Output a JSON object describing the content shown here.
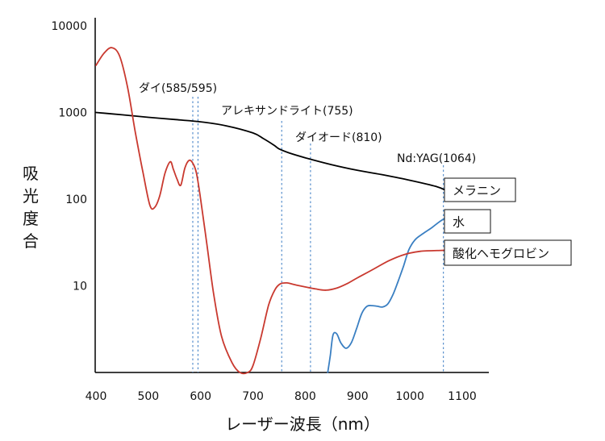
{
  "chart_data": {
    "type": "line",
    "title": "",
    "xlabel": "レーザー波長（nm）",
    "ylabel": "吸光度合",
    "x_ticks": [
      400,
      500,
      600,
      700,
      800,
      900,
      1000,
      1100
    ],
    "xlim": [
      400,
      1150
    ],
    "y_scale": "log",
    "y_ticks": [
      {
        "value": 10,
        "label": "10"
      },
      {
        "value": 100,
        "label": "100"
      },
      {
        "value": 1000,
        "label": "1000"
      },
      {
        "value": 10000,
        "label": "10000"
      }
    ],
    "ylim": [
      1,
      10000
    ],
    "grid": false,
    "lasers": [
      {
        "label": "ダイ(585/595)",
        "wavelengths": [
          585,
          595
        ]
      },
      {
        "label": "アレキサンドライト(755)",
        "wavelengths": [
          755
        ]
      },
      {
        "label": "ダイオード(810)",
        "wavelengths": [
          810
        ]
      },
      {
        "label": "Nd:YAG(1064)",
        "wavelengths": [
          1064
        ]
      }
    ],
    "laser_line_color": "#4a86c8",
    "series": [
      {
        "name": "メラニン",
        "color": "#000000",
        "x": [
          400,
          450,
          500,
          550,
          600,
          650,
          700,
          720,
          740,
          750,
          770,
          800,
          850,
          900,
          950,
          1000,
          1050,
          1070
        ],
        "y": [
          1000,
          940,
          880,
          830,
          780,
          700,
          580,
          500,
          420,
          380,
          340,
          300,
          250,
          215,
          190,
          165,
          140,
          125
        ]
      },
      {
        "name": "水",
        "color": "#3a7fc2",
        "x": [
          843,
          848,
          853,
          860,
          868,
          878,
          888,
          898,
          908,
          918,
          928,
          938,
          948,
          958,
          968,
          978,
          988,
          998,
          1010,
          1025,
          1040,
          1055,
          1070
        ],
        "y": [
          1,
          1.6,
          2.7,
          2.8,
          2.2,
          1.9,
          2.2,
          3.2,
          4.8,
          5.8,
          5.9,
          5.8,
          5.7,
          6.2,
          8.0,
          11.5,
          17,
          26,
          34,
          40,
          46,
          54,
          62
        ]
      },
      {
        "name": "酸化ヘモグロビン",
        "color": "#c9392f",
        "x": [
          400,
          415,
          430,
          445,
          460,
          475,
          490,
          503,
          512,
          522,
          532,
          542,
          548,
          555,
          562,
          570,
          578,
          585,
          592,
          600,
          612,
          625,
          640,
          660,
          675,
          690,
          700,
          715,
          730,
          742,
          752,
          765,
          780,
          800,
          820,
          840,
          860,
          880,
          900,
          930,
          960,
          990,
          1020,
          1060,
          1070
        ],
        "y": [
          3500,
          4800,
          5600,
          4500,
          2000,
          600,
          200,
          85,
          80,
          110,
          200,
          270,
          220,
          170,
          145,
          230,
          280,
          260,
          200,
          100,
          30,
          8,
          2.6,
          1.3,
          1,
          1,
          1.2,
          2.5,
          6,
          9,
          10.5,
          10.8,
          10.3,
          9.7,
          9.2,
          8.9,
          9.4,
          10.6,
          12.4,
          15.5,
          19.5,
          23,
          25,
          25.6,
          25.7
        ]
      }
    ]
  }
}
